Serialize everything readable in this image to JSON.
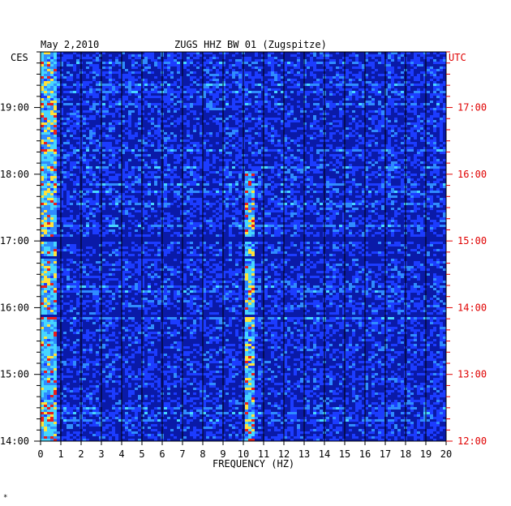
{
  "chart_data": {
    "type": "heatmap",
    "title": "ZUGS HHZ BW 01 (Zugspitze)",
    "date": "May 2,2010",
    "xlabel": "FREQUENCY (HZ)",
    "left_axis_label": "CES",
    "right_axis_label": "UTC",
    "x_ticks": [
      "0",
      "1",
      "2",
      "3",
      "4",
      "5",
      "6",
      "7",
      "8",
      "9",
      "10",
      "11",
      "12",
      "13",
      "14",
      "15",
      "16",
      "17",
      "18",
      "19",
      "20"
    ],
    "xlim": [
      0,
      20
    ],
    "left_ticks": [
      "19:00",
      "18:00",
      "17:00",
      "16:00",
      "15:00",
      "14:00"
    ],
    "right_ticks": [
      "17:00",
      "16:00",
      "15:00",
      "14:00",
      "13:00",
      "12:00"
    ],
    "time_range_ces": [
      "14:00",
      "19:50"
    ],
    "colors": {
      "background": "#0a1aa8",
      "low": "#1c3cff",
      "mid": "#2f8cff",
      "high": "#46d6ff",
      "peak": "#ffe23a",
      "max": "#e81e1e",
      "axis_right_text": "#e00000"
    },
    "notable_features": {
      "persistent_line_hz": 10.2,
      "low_freq_energy_hz": [
        0,
        0.8
      ]
    }
  },
  "footer_mark": "*"
}
